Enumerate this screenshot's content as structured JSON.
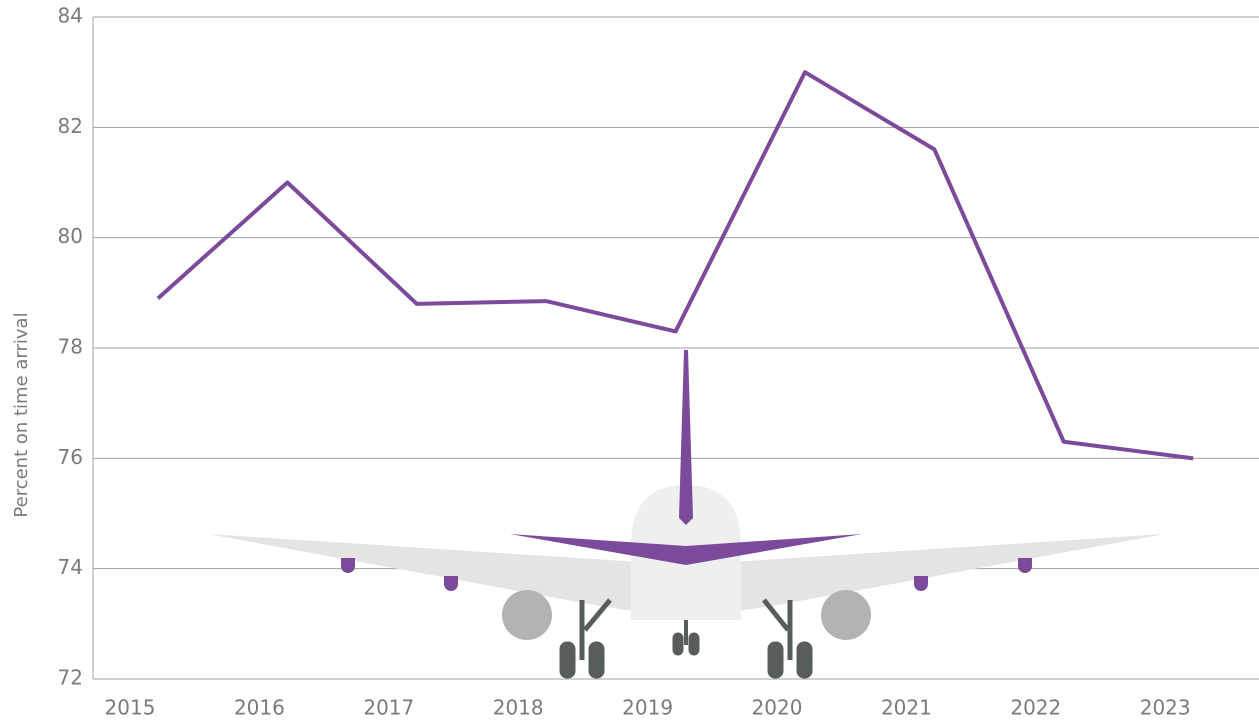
{
  "chart_data": {
    "type": "line",
    "y_label": "Percent on time arrival",
    "categories": [
      "2015",
      "2016",
      "2017",
      "2018",
      "2019",
      "2020",
      "2021",
      "2022",
      "2023"
    ],
    "series": [
      {
        "name": null,
        "color": "#7b4a9a",
        "values": [
          78.9,
          81.0,
          78.8,
          78.85,
          78.3,
          83.0,
          81.6,
          76.3,
          76.0
        ]
      }
    ],
    "ylim": [
      72,
      84
    ],
    "yticks": [
      72,
      74,
      76,
      78,
      80,
      82,
      84
    ],
    "grid": true
  }
}
